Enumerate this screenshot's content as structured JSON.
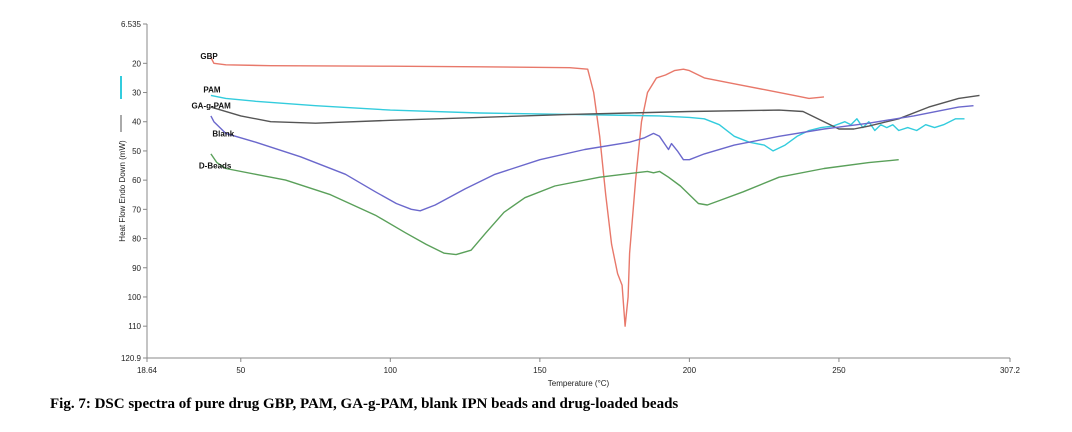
{
  "chart_data": {
    "type": "line",
    "title": "",
    "xlabel": "Temperature (°C)",
    "ylabel": "Heat Flow Endo Down (mW)",
    "xlim": [
      18.64,
      307.2
    ],
    "ylim": [
      6.535,
      120.9
    ],
    "y_inverted": true,
    "grid": false,
    "x_ticks": [
      {
        "value": 18.64,
        "label": "18.64"
      },
      {
        "value": 50,
        "label": "50"
      },
      {
        "value": 100,
        "label": "100"
      },
      {
        "value": 150,
        "label": "150"
      },
      {
        "value": 200,
        "label": "200"
      },
      {
        "value": 250,
        "label": "250"
      },
      {
        "value": 307.2,
        "label": "307.2"
      }
    ],
    "y_ticks": [
      {
        "value": 6.535,
        "label": "6.535"
      },
      {
        "value": 20,
        "label": "20"
      },
      {
        "value": 30,
        "label": "30"
      },
      {
        "value": 40,
        "label": "40"
      },
      {
        "value": 50,
        "label": "50"
      },
      {
        "value": 60,
        "label": "60"
      },
      {
        "value": 70,
        "label": "70"
      },
      {
        "value": 80,
        "label": "80"
      },
      {
        "value": 90,
        "label": "90"
      },
      {
        "value": 100,
        "label": "100"
      },
      {
        "value": 110,
        "label": "110"
      },
      {
        "value": 120.9,
        "label": "120.9"
      }
    ],
    "series": [
      {
        "name": "GBP",
        "color": "#e8786a",
        "points": [
          [
            40,
            18
          ],
          [
            41,
            20
          ],
          [
            45,
            20.5
          ],
          [
            60,
            20.8
          ],
          [
            100,
            21
          ],
          [
            130,
            21.2
          ],
          [
            160,
            21.5
          ],
          [
            166,
            22
          ],
          [
            168,
            30
          ],
          [
            170,
            45
          ],
          [
            172,
            65
          ],
          [
            174,
            82
          ],
          [
            176,
            92
          ],
          [
            177.5,
            96
          ],
          [
            178.5,
            110
          ],
          [
            179.5,
            100
          ],
          [
            180,
            85
          ],
          [
            182,
            60
          ],
          [
            184,
            40
          ],
          [
            186,
            30
          ],
          [
            189,
            25
          ],
          [
            192,
            24
          ],
          [
            195,
            22.5
          ],
          [
            198,
            22
          ],
          [
            200,
            22.5
          ],
          [
            205,
            25
          ],
          [
            215,
            27
          ],
          [
            225,
            29
          ],
          [
            235,
            31
          ],
          [
            240,
            32
          ],
          [
            245,
            31.5
          ]
        ]
      },
      {
        "name": "PAM",
        "color": "#33ccdd",
        "points": [
          [
            40,
            31
          ],
          [
            45,
            32
          ],
          [
            55,
            33
          ],
          [
            75,
            34.5
          ],
          [
            100,
            36
          ],
          [
            130,
            37
          ],
          [
            160,
            37.5
          ],
          [
            190,
            38
          ],
          [
            200,
            38.5
          ],
          [
            205,
            39
          ],
          [
            210,
            41
          ],
          [
            215,
            45
          ],
          [
            220,
            47
          ],
          [
            225,
            48
          ],
          [
            228,
            50
          ],
          [
            232,
            48
          ],
          [
            236,
            45
          ],
          [
            240,
            43
          ],
          [
            244,
            42
          ],
          [
            248,
            41.5
          ],
          [
            252,
            40
          ],
          [
            254,
            41
          ],
          [
            256,
            39
          ],
          [
            258,
            42
          ],
          [
            260,
            40
          ],
          [
            262,
            43
          ],
          [
            264,
            41
          ],
          [
            266,
            42
          ],
          [
            268,
            41
          ],
          [
            270,
            43
          ],
          [
            273,
            42
          ],
          [
            276,
            43
          ],
          [
            279,
            41
          ],
          [
            282,
            42
          ],
          [
            285,
            41
          ],
          [
            289,
            39
          ],
          [
            292,
            39
          ]
        ]
      },
      {
        "name": "GA-g-PAM",
        "color": "#555555",
        "points": [
          [
            40,
            35
          ],
          [
            50,
            38
          ],
          [
            60,
            40
          ],
          [
            75,
            40.5
          ],
          [
            100,
            39.5
          ],
          [
            130,
            38.5
          ],
          [
            160,
            37.5
          ],
          [
            180,
            37
          ],
          [
            200,
            36.5
          ],
          [
            230,
            36
          ],
          [
            238,
            36.5
          ],
          [
            245,
            40
          ],
          [
            250,
            42.5
          ],
          [
            255,
            42.5
          ],
          [
            260,
            41.5
          ],
          [
            270,
            39
          ],
          [
            280,
            35
          ],
          [
            290,
            32
          ],
          [
            297,
            31
          ]
        ]
      },
      {
        "name": "Blank",
        "color": "#6b68cc",
        "points": [
          [
            40,
            38
          ],
          [
            41,
            40
          ],
          [
            45,
            44
          ],
          [
            55,
            47
          ],
          [
            70,
            52
          ],
          [
            85,
            58
          ],
          [
            95,
            64
          ],
          [
            102,
            68
          ],
          [
            107,
            70
          ],
          [
            110,
            70.5
          ],
          [
            115,
            68.5
          ],
          [
            125,
            63
          ],
          [
            135,
            58
          ],
          [
            150,
            53
          ],
          [
            165,
            49.5
          ],
          [
            180,
            47
          ],
          [
            185,
            45.5
          ],
          [
            188,
            44
          ],
          [
            190,
            45
          ],
          [
            192,
            48
          ],
          [
            193,
            49.5
          ],
          [
            194,
            47.5
          ],
          [
            196,
            50
          ],
          [
            198,
            53
          ],
          [
            200,
            53
          ],
          [
            205,
            51
          ],
          [
            215,
            48
          ],
          [
            230,
            45
          ],
          [
            245,
            42.5
          ],
          [
            260,
            40.5
          ],
          [
            275,
            38
          ],
          [
            290,
            35
          ],
          [
            295,
            34.5
          ]
        ]
      },
      {
        "name": "D-Beads",
        "color": "#5aa05a",
        "points": [
          [
            40,
            51
          ],
          [
            42,
            54
          ],
          [
            45,
            56
          ],
          [
            55,
            58
          ],
          [
            65,
            60
          ],
          [
            80,
            65
          ],
          [
            95,
            72
          ],
          [
            105,
            78
          ],
          [
            112,
            82
          ],
          [
            118,
            85
          ],
          [
            122,
            85.5
          ],
          [
            127,
            84
          ],
          [
            132,
            78
          ],
          [
            138,
            71
          ],
          [
            145,
            66
          ],
          [
            155,
            62
          ],
          [
            170,
            59
          ],
          [
            182,
            57.5
          ],
          [
            186,
            57
          ],
          [
            188,
            57.5
          ],
          [
            190,
            57
          ],
          [
            193,
            59
          ],
          [
            197,
            62
          ],
          [
            200,
            65
          ],
          [
            203,
            68
          ],
          [
            206,
            68.5
          ],
          [
            210,
            67
          ],
          [
            218,
            64
          ],
          [
            230,
            59
          ],
          [
            245,
            56
          ],
          [
            260,
            54
          ],
          [
            270,
            53
          ]
        ]
      }
    ],
    "annotations": [
      {
        "text": "GBP",
        "x": 36.5,
        "y": 17.5
      },
      {
        "text": "PAM",
        "x": 37.5,
        "y": 29
      },
      {
        "text": "GA-g-PAM",
        "x": 33.5,
        "y": 34.5
      },
      {
        "text": "Blank",
        "x": 40.5,
        "y": 44
      },
      {
        "text": "D-Beads",
        "x": 36,
        "y": 55
      }
    ]
  },
  "caption": "Fig. 7: DSC spectra of pure drug GBP, PAM, GA-g-PAM, blank IPN beads and drug-loaded beads"
}
